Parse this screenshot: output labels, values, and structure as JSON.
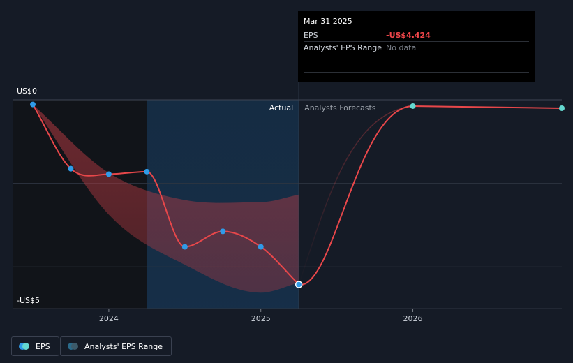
{
  "chart_data": {
    "type": "line",
    "title": "",
    "ylabel": "",
    "ylim": [
      -5,
      0
    ],
    "y_tick_labels": {
      "top": "US$0",
      "bottom": "-US$5"
    },
    "x_ticks": [
      {
        "label": "2024",
        "x": 2024.0
      },
      {
        "label": "2025",
        "x": 2025.0
      },
      {
        "label": "2026",
        "x": 2026.0
      }
    ],
    "x_range": [
      2023.5,
      2026.98
    ],
    "actual_split_x": 2025.25,
    "highlight_start_x": 2024.25,
    "regions": {
      "actual": "Actual",
      "forecast": "Analysts Forecasts"
    },
    "series": [
      {
        "name": "EPS",
        "kind": "actual",
        "points": [
          {
            "x": 2023.5,
            "y": -0.11
          },
          {
            "x": 2023.75,
            "y": -1.65
          },
          {
            "x": 2024.0,
            "y": -1.78
          },
          {
            "x": 2024.25,
            "y": -1.72
          },
          {
            "x": 2024.5,
            "y": -3.52
          },
          {
            "x": 2024.75,
            "y": -3.15
          },
          {
            "x": 2025.0,
            "y": -3.52
          },
          {
            "x": 2025.25,
            "y": -4.424
          }
        ]
      },
      {
        "name": "EPS forecast",
        "kind": "forecast",
        "points": [
          {
            "x": 2025.25,
            "y": -4.424
          },
          {
            "x": 2026.0,
            "y": -0.15
          },
          {
            "x": 2026.98,
            "y": -0.2
          }
        ]
      }
    ],
    "range_band": {
      "upper": [
        {
          "x": 2023.5,
          "y": -0.11
        },
        {
          "x": 2024.0,
          "y": -1.75
        },
        {
          "x": 2024.5,
          "y": -2.4
        },
        {
          "x": 2025.0,
          "y": -2.45
        },
        {
          "x": 2025.25,
          "y": -2.27
        }
      ],
      "lower": [
        {
          "x": 2023.5,
          "y": -0.11
        },
        {
          "x": 2024.0,
          "y": -2.75
        },
        {
          "x": 2024.5,
          "y": -3.95
        },
        {
          "x": 2025.0,
          "y": -4.62
        },
        {
          "x": 2025.25,
          "y": -4.38
        }
      ]
    },
    "tooltip": {
      "date": "Mar 31 2025",
      "rows": [
        {
          "key": "EPS",
          "value": "-US$4.424"
        },
        {
          "key": "Analysts' EPS Range",
          "value": "No data"
        }
      ]
    },
    "legend": [
      {
        "label": "EPS"
      },
      {
        "label": "Analysts' EPS Range"
      }
    ]
  },
  "colors": {
    "background": "#151b26",
    "actual_dark": "#111419",
    "highlight": "#16304a",
    "line": "#e8474a",
    "band": "#b83a42",
    "marker": "#2f9be8",
    "forecast_marker": "#64d8d0",
    "grid": "#2e3541"
  }
}
